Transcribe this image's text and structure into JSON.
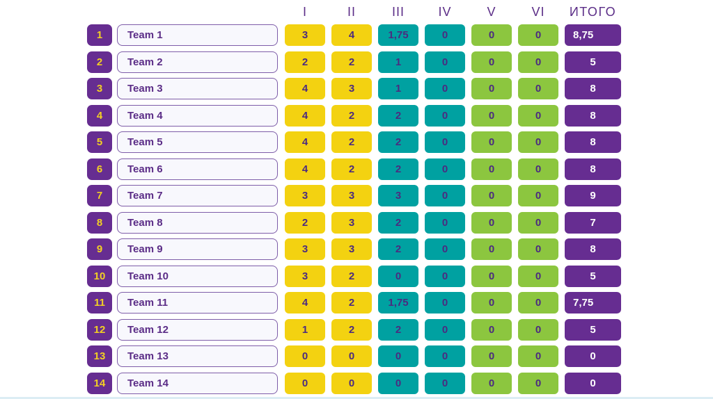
{
  "header": {
    "labels": [
      "I",
      "II",
      "III",
      "IV",
      "V",
      "VI",
      "ИТОГО"
    ]
  },
  "chart_data": {
    "type": "table",
    "columns": [
      "rank",
      "team",
      "I",
      "II",
      "III",
      "IV",
      "V",
      "VI",
      "ИТОГО"
    ],
    "rows": [
      [
        "1",
        "Team 1",
        "3",
        "4",
        "1,75",
        "0",
        "0",
        "0",
        "8,75"
      ],
      [
        "2",
        "Team 2",
        "2",
        "2",
        "1",
        "0",
        "0",
        "0",
        "5"
      ],
      [
        "3",
        "Team 3",
        "4",
        "3",
        "1",
        "0",
        "0",
        "0",
        "8"
      ],
      [
        "4",
        "Team 4",
        "4",
        "2",
        "2",
        "0",
        "0",
        "0",
        "8"
      ],
      [
        "5",
        "Team 5",
        "4",
        "2",
        "2",
        "0",
        "0",
        "0",
        "8"
      ],
      [
        "6",
        "Team 6",
        "4",
        "2",
        "2",
        "0",
        "0",
        "0",
        "8"
      ],
      [
        "7",
        "Team 7",
        "3",
        "3",
        "3",
        "0",
        "0",
        "0",
        "9"
      ],
      [
        "8",
        "Team 8",
        "2",
        "3",
        "2",
        "0",
        "0",
        "0",
        "7"
      ],
      [
        "9",
        "Team 9",
        "3",
        "3",
        "2",
        "0",
        "0",
        "0",
        "8"
      ],
      [
        "10",
        "Team 10",
        "3",
        "2",
        "0",
        "0",
        "0",
        "0",
        "5"
      ],
      [
        "11",
        "Team 11",
        "4",
        "2",
        "1,75",
        "0",
        "0",
        "0",
        "7,75"
      ],
      [
        "12",
        "Team 12",
        "1",
        "2",
        "2",
        "0",
        "0",
        "0",
        "5"
      ],
      [
        "13",
        "Team 13",
        "0",
        "0",
        "0",
        "0",
        "0",
        "0",
        "0"
      ],
      [
        "14",
        "Team 14",
        "0",
        "0",
        "0",
        "0",
        "0",
        "0",
        "0"
      ]
    ],
    "title": "",
    "notes": "Scoreboard table: columns I-II yellow, III-IV teal, V-VI green, ИТОГО purple"
  },
  "colors": {
    "purple": "#662d91",
    "yellow": "#f3d211",
    "teal": "#00a1a1",
    "green": "#8cc63f",
    "header_text": "#5b2d87",
    "rank_text": "#f2d024",
    "total_text": "#ffffff"
  }
}
